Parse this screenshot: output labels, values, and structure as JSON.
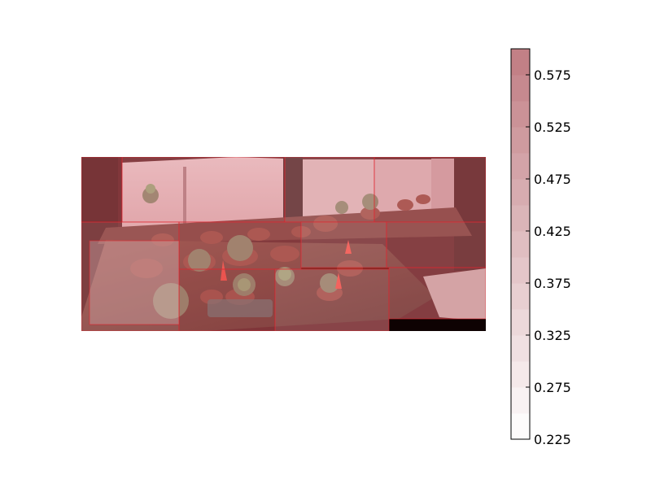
{
  "chart_data": {
    "type": "heatmap",
    "title": "",
    "colorbar": {
      "min": 0.225,
      "max": 0.6,
      "levels": 15,
      "color_low": "#ffffff",
      "color_high": "#c07c82",
      "ticks": [
        {
          "value": 0.225,
          "label": "0.225"
        },
        {
          "value": 0.275,
          "label": "0.275"
        },
        {
          "value": 0.325,
          "label": "0.325"
        },
        {
          "value": 0.375,
          "label": "0.375"
        },
        {
          "value": 0.425,
          "label": "0.425"
        },
        {
          "value": 0.475,
          "label": "0.475"
        },
        {
          "value": 0.525,
          "label": "0.525"
        },
        {
          "value": 0.575,
          "label": "0.575"
        }
      ]
    },
    "background_image": "panorama photo of potted succulents and cacti on a windowsill and wooden table, tinted red",
    "overlay_tiles": [
      {
        "value": 0.56
      },
      {
        "value": 0.5
      },
      {
        "value": 0.44
      },
      {
        "value": 0.52
      },
      {
        "value": 0.47
      },
      {
        "value": 0.54
      },
      {
        "value": 0.42
      },
      {
        "value": 0.49
      },
      {
        "value": 0.58
      },
      {
        "value": 0.45
      },
      {
        "value": 0.51
      },
      {
        "value": 0.43
      }
    ]
  }
}
